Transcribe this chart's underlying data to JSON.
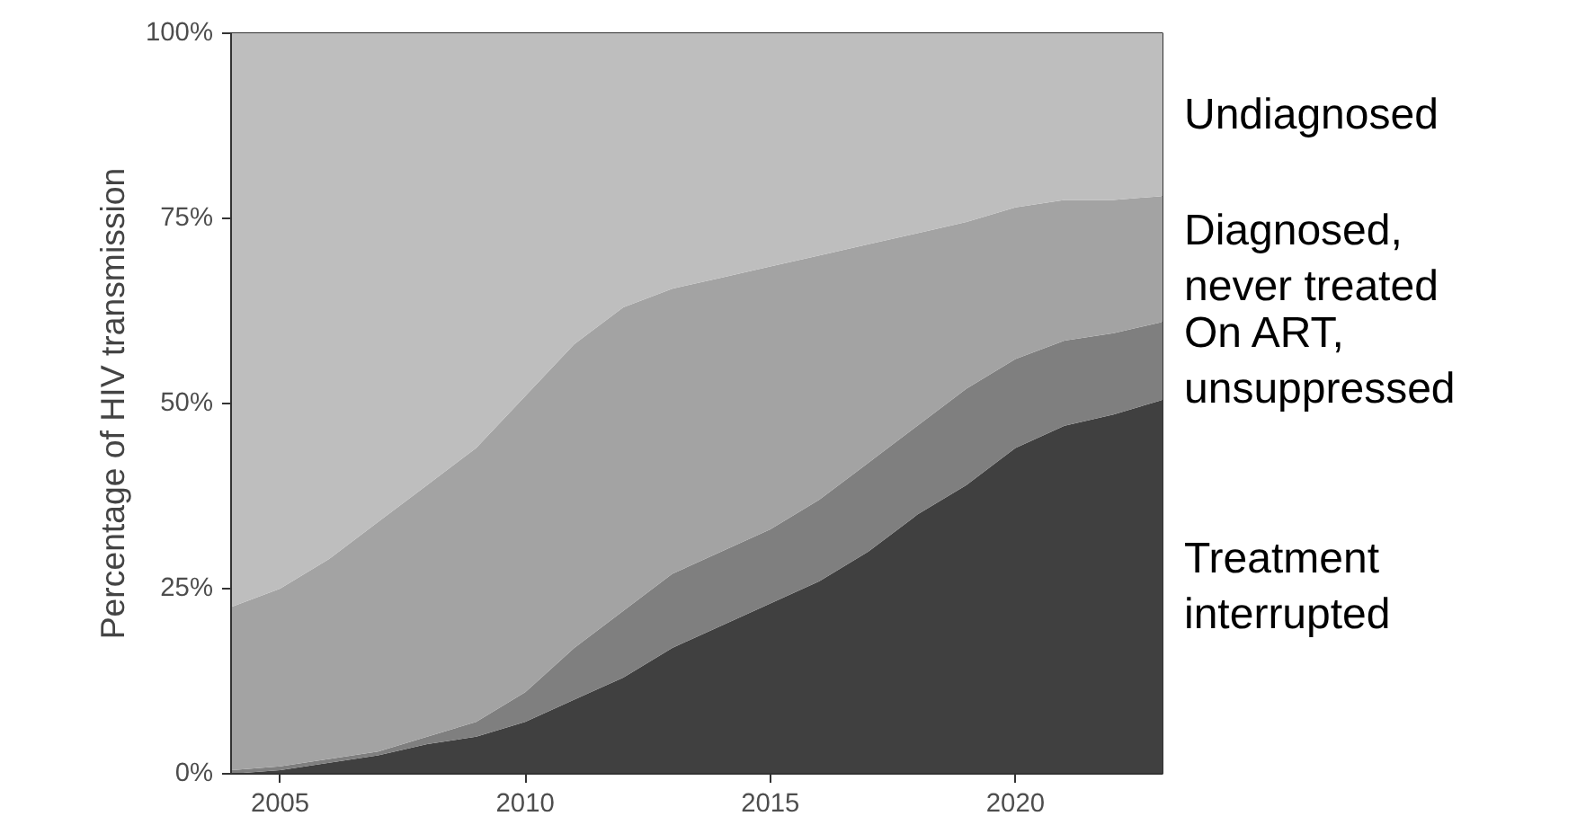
{
  "chart_data": {
    "type": "area",
    "stacked": true,
    "ylabel": "Percentage of HIV transmission",
    "x": [
      2004,
      2005,
      2006,
      2007,
      2008,
      2009,
      2010,
      2011,
      2012,
      2013,
      2014,
      2015,
      2016,
      2017,
      2018,
      2019,
      2020,
      2021,
      2022,
      2023
    ],
    "series": [
      {
        "name": "Treatment\ninterrupted",
        "color": "#404040",
        "values": [
          0,
          0.5,
          1.5,
          2.5,
          4,
          5,
          7,
          10,
          13,
          17,
          20,
          23,
          26,
          30,
          35,
          39,
          44,
          47,
          48.5,
          50.5
        ]
      },
      {
        "name": "On ART,\nunsuppressed",
        "color": "#7f7f7f",
        "values": [
          0.5,
          0.5,
          0.5,
          0.5,
          1,
          2,
          4,
          7,
          9,
          10,
          10,
          10,
          11,
          12,
          12,
          13,
          12,
          11.5,
          11,
          10.5
        ]
      },
      {
        "name": "Diagnosed,\nnever treated",
        "color": "#a3a3a3",
        "values": [
          22,
          24,
          27,
          31,
          34,
          37,
          40,
          41,
          41,
          38.5,
          37,
          35.5,
          33,
          29.5,
          26,
          22.5,
          20.5,
          19,
          18,
          17
        ]
      },
      {
        "name": "Undiagnosed",
        "color": "#bebebe",
        "values": [
          77.5,
          75,
          71,
          66,
          61,
          56,
          49,
          42,
          37,
          34.5,
          33,
          31.5,
          30,
          28.5,
          27,
          25.5,
          23.5,
          22.5,
          22.5,
          22
        ]
      }
    ],
    "xlim": [
      2004,
      2023
    ],
    "xticks": [
      2005,
      2010,
      2015,
      2020
    ],
    "ylim": [
      0,
      100
    ],
    "yticks": [
      {
        "value": 0,
        "label": "0%"
      },
      {
        "value": 25,
        "label": "25%"
      },
      {
        "value": 50,
        "label": "50%"
      },
      {
        "value": 75,
        "label": "75%"
      },
      {
        "value": 100,
        "label": "100%"
      }
    ],
    "grid": false
  }
}
